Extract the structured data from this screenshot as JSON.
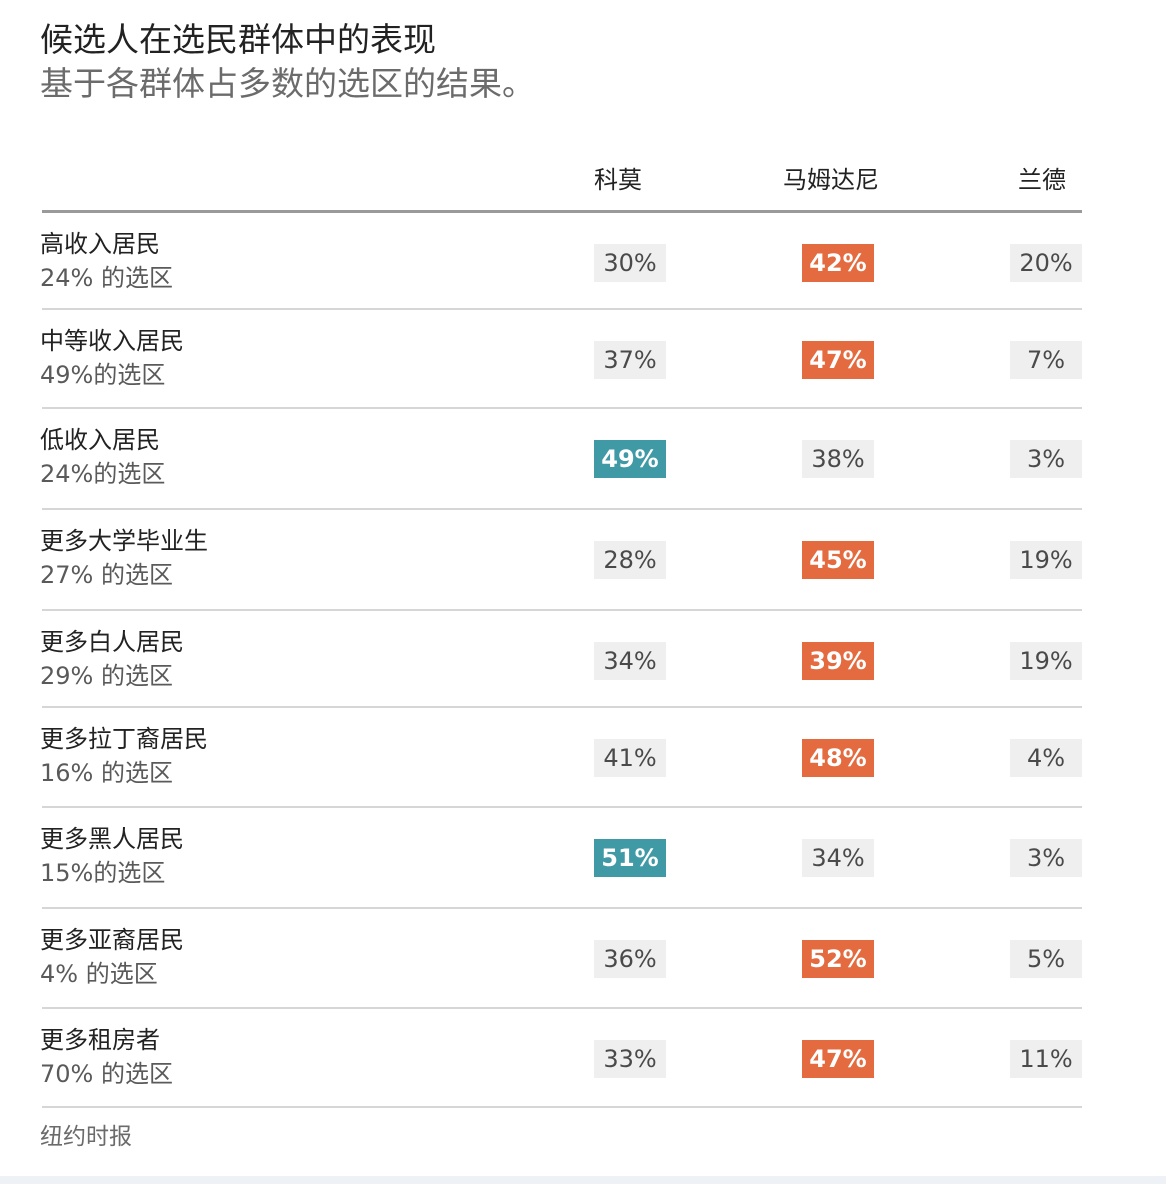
{
  "chart_data": {
    "type": "table",
    "title": "候选人在选民群体中的表现",
    "subtitle": "基于各群体占多数的选区的结果。",
    "source": "纽约时报",
    "colors": {
      "cuomo_win": "#3f9aa6",
      "mamdani_win": "#e46a3f",
      "neutral_cell": "#efefef"
    },
    "columns": [
      {
        "key": "cuomo",
        "label": "科莫"
      },
      {
        "key": "mamdani",
        "label": "马姆达尼"
      },
      {
        "key": "lander",
        "label": "兰德"
      }
    ],
    "rows": [
      {
        "label": "高收入居民",
        "sub": "24% 的选区",
        "values": [
          "30%",
          "42%",
          "20%"
        ],
        "winner": 1
      },
      {
        "label": "中等收入居民",
        "sub": "49%的选区",
        "values": [
          "37%",
          "47%",
          "7%"
        ],
        "winner": 1
      },
      {
        "label": "低收入居民",
        "sub": "24%的选区",
        "values": [
          "49%",
          "38%",
          "3%"
        ],
        "winner": 0
      },
      {
        "label": "更多大学毕业生",
        "sub": "27% 的选区",
        "values": [
          "28%",
          "45%",
          "19%"
        ],
        "winner": 1
      },
      {
        "label": "更多白人居民",
        "sub": "29% 的选区",
        "values": [
          "34%",
          "39%",
          "19%"
        ],
        "winner": 1
      },
      {
        "label": "更多拉丁裔居民",
        "sub": "16% 的选区",
        "values": [
          "41%",
          "48%",
          "4%"
        ],
        "winner": 1
      },
      {
        "label": "更多黑人居民",
        "sub": "15%的选区",
        "values": [
          "51%",
          "34%",
          "3%"
        ],
        "winner": 0
      },
      {
        "label": "更多亚裔居民",
        "sub": "4% 的选区",
        "values": [
          "36%",
          "52%",
          "5%"
        ],
        "winner": 1
      },
      {
        "label": "更多租房者",
        "sub": "70% 的选区",
        "values": [
          "33%",
          "47%",
          "11%"
        ],
        "winner": 1
      }
    ]
  }
}
